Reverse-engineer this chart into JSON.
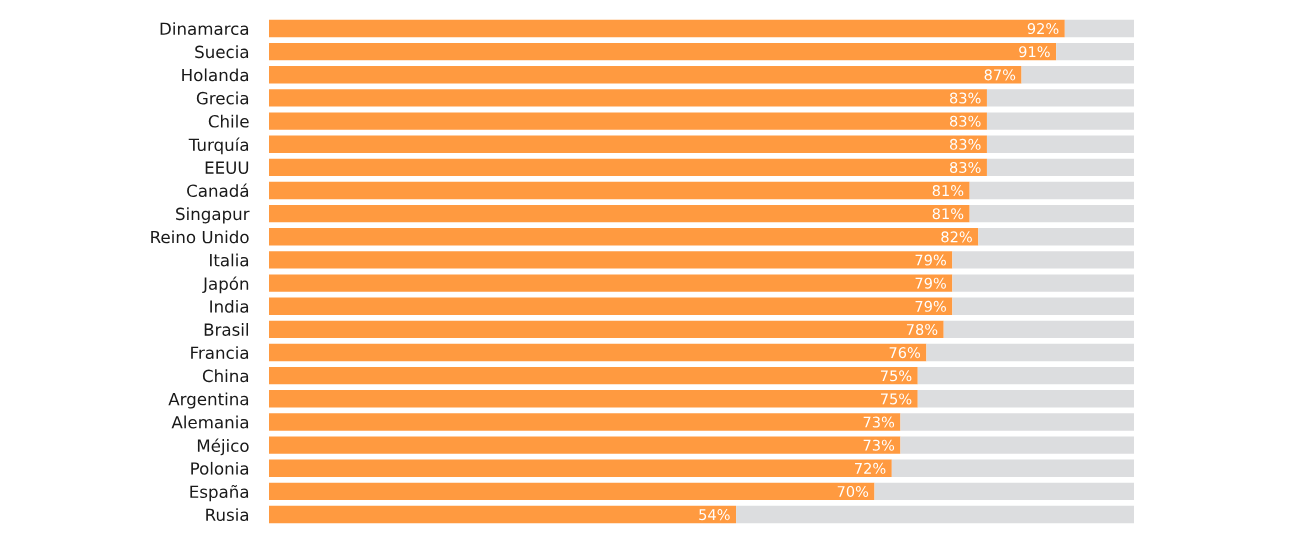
{
  "chart_data": {
    "type": "bar",
    "orientation": "horizontal",
    "stacked": true,
    "categories": [
      "Dinamarca",
      "Suecia",
      "Holanda",
      "Grecia",
      "Chile",
      "Turquía",
      "EEUU",
      "Canadá",
      "Singapur",
      "Reino Unido",
      "Italia",
      "Japón",
      "India",
      "Brasil",
      "Francia",
      "China",
      "Argentina",
      "Alemania",
      "Méjico",
      "Polonia",
      "España",
      "Rusia"
    ],
    "series": [
      {
        "color": "#ff9a40",
        "values": [
          92,
          91,
          87,
          83,
          83,
          83,
          83,
          81,
          81,
          82,
          79,
          79,
          79,
          78,
          76,
          75,
          75,
          73,
          73,
          72,
          70,
          54
        ],
        "value_labels": [
          "92%",
          "91%",
          "87%",
          "83%",
          "83%",
          "83%",
          "83%",
          "81%",
          "81%",
          "82%",
          "79%",
          "79%",
          "79%",
          "78%",
          "76%",
          "75%",
          "75%",
          "73%",
          "73%",
          "72%",
          "70%",
          "54%"
        ]
      },
      {
        "color": "#dcdddf",
        "values": [
          8,
          9,
          13,
          17,
          17,
          17,
          17,
          19,
          19,
          18,
          21,
          21,
          21,
          22,
          24,
          25,
          25,
          27,
          27,
          28,
          30,
          46
        ]
      }
    ],
    "xlim": [
      0,
      100
    ],
    "tick_labels": "y"
  }
}
